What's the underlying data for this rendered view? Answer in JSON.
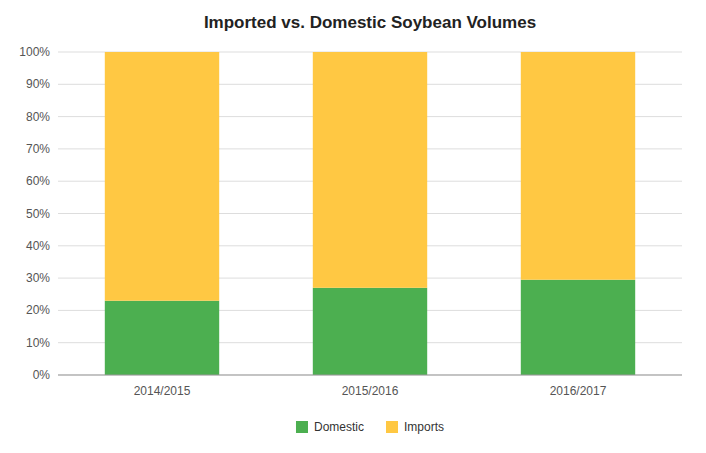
{
  "chart_data": {
    "type": "bar",
    "stacked": true,
    "title": "Imported vs. Domestic Soybean Volumes",
    "categories": [
      "2014/2015",
      "2015/2016",
      "2016/2017"
    ],
    "series": [
      {
        "name": "Domestic",
        "color": "#4CAF50",
        "values": [
          0.23,
          0.27,
          0.295
        ]
      },
      {
        "name": "Imports",
        "color": "#FFC843",
        "values": [
          0.77,
          0.73,
          0.705
        ]
      }
    ],
    "ylim": [
      0,
      1.0
    ],
    "yticks": [
      {
        "value": 0.0,
        "label": "0%"
      },
      {
        "value": 0.1,
        "label": "10%"
      },
      {
        "value": 0.2,
        "label": "20%"
      },
      {
        "value": 0.3,
        "label": "30%"
      },
      {
        "value": 0.4,
        "label": "40%"
      },
      {
        "value": 0.5,
        "label": "50%"
      },
      {
        "value": 0.6,
        "label": "60%"
      },
      {
        "value": 0.7,
        "label": "70%"
      },
      {
        "value": 0.8,
        "label": "80%"
      },
      {
        "value": 0.9,
        "label": "90%"
      },
      {
        "value": 1.0,
        "label": "100%"
      }
    ],
    "grid": true,
    "legend": "bottom"
  }
}
